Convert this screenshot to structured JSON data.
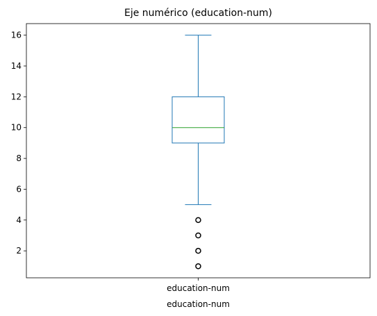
{
  "chart_data": {
    "type": "box",
    "title": "Eje numérico (education-num)",
    "xlabel": "education-num",
    "ylabel": "",
    "categories": [
      "education-num"
    ],
    "ylim": [
      0.25,
      16.75
    ],
    "yticks": [
      2,
      4,
      6,
      8,
      10,
      12,
      14,
      16
    ],
    "grid": false,
    "series": [
      {
        "category": "education-num",
        "whisker_low": 5,
        "q1": 9,
        "median": 10,
        "q3": 12,
        "whisker_high": 16,
        "outliers": [
          1,
          2,
          3,
          4
        ]
      }
    ],
    "colors": {
      "box": "#1f77b4",
      "median": "#2ca02c",
      "outlier": "#000000",
      "axes": "#000000"
    }
  }
}
